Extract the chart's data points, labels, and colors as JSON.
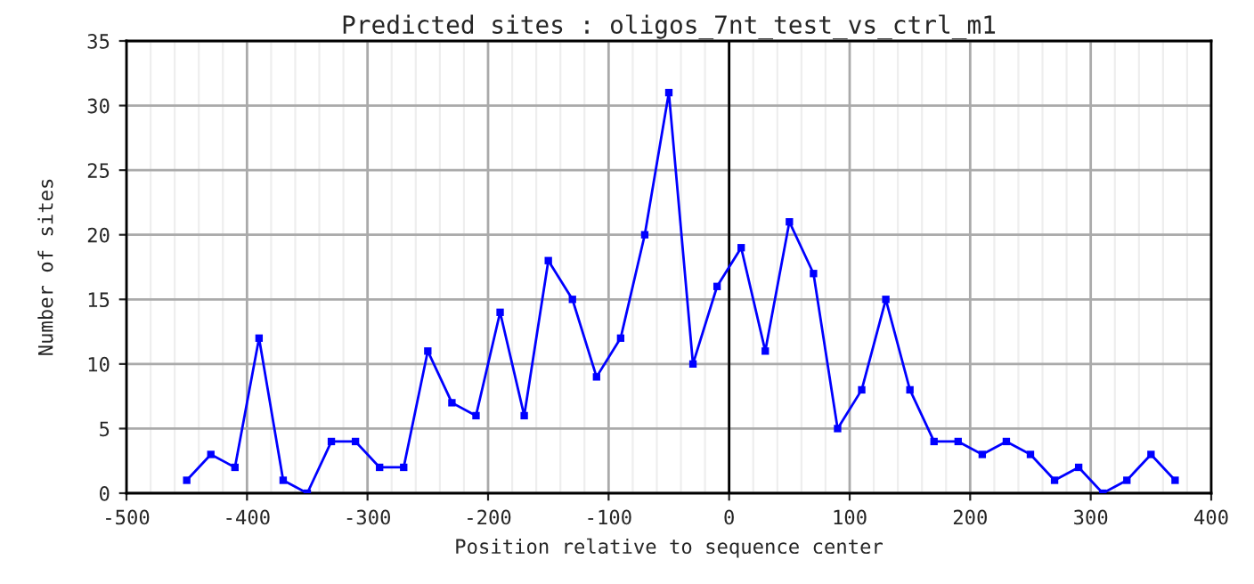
{
  "chart_data": {
    "type": "line",
    "title": "Predicted sites : oligos_7nt_test_vs_ctrl_m1",
    "xlabel": "Position relative to sequence center",
    "ylabel": "Number of sites",
    "x": [
      -450,
      -430,
      -410,
      -390,
      -370,
      -350,
      -330,
      -310,
      -290,
      -270,
      -250,
      -230,
      -210,
      -190,
      -170,
      -150,
      -130,
      -110,
      -90,
      -70,
      -50,
      -30,
      -10,
      10,
      30,
      50,
      70,
      90,
      110,
      130,
      150,
      170,
      190,
      210,
      230,
      250,
      270,
      290,
      310,
      330,
      350,
      370
    ],
    "series": [
      {
        "color": "#0000ff",
        "values": [
          1,
          3,
          2,
          12,
          1,
          0,
          4,
          4,
          2,
          2,
          11,
          7,
          6,
          14,
          6,
          18,
          15,
          9,
          12,
          20,
          31,
          10,
          16,
          19,
          11,
          21,
          17,
          5,
          8,
          15,
          8,
          4,
          4,
          3,
          4,
          3,
          1,
          2,
          0,
          1,
          3,
          1
        ]
      }
    ],
    "xlim": [
      -500,
      400
    ],
    "xticks": [
      -500,
      -400,
      -300,
      -200,
      -100,
      0,
      100,
      200,
      300,
      400
    ],
    "ylim": [
      0,
      35
    ],
    "yticks": [
      0,
      5,
      10,
      15,
      20,
      25,
      30,
      35
    ],
    "ref_lines": [
      {
        "axis": "x",
        "value": 0,
        "color": "#000000"
      }
    ],
    "grid": true,
    "marker": "square",
    "line_style": "solid"
  }
}
